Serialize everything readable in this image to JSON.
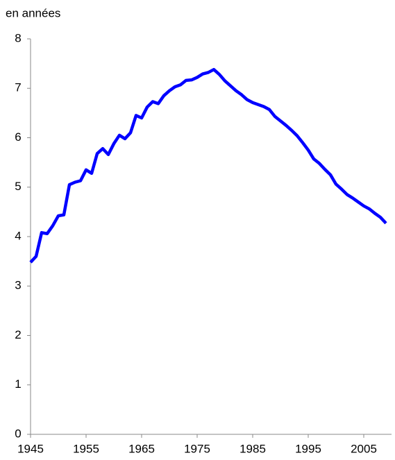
{
  "chart_data": {
    "type": "line",
    "y_axis_label": "en années",
    "x": [
      1945,
      1946,
      1947,
      1948,
      1949,
      1950,
      1951,
      1952,
      1953,
      1954,
      1955,
      1956,
      1957,
      1958,
      1959,
      1960,
      1961,
      1962,
      1963,
      1964,
      1965,
      1966,
      1967,
      1968,
      1969,
      1970,
      1971,
      1972,
      1973,
      1974,
      1975,
      1976,
      1977,
      1978,
      1979,
      1980,
      1981,
      1982,
      1983,
      1984,
      1985,
      1986,
      1987,
      1988,
      1989,
      1990,
      1991,
      1992,
      1993,
      1994,
      1995,
      1996,
      1997,
      1998,
      1999,
      2000,
      2001,
      2002,
      2003,
      2004,
      2005,
      2006,
      2007,
      2008,
      2009
    ],
    "series": [
      {
        "color": "#0000ff",
        "values": [
          3.48,
          3.6,
          4.08,
          4.06,
          4.22,
          4.42,
          4.44,
          5.05,
          5.1,
          5.13,
          5.35,
          5.28,
          5.68,
          5.78,
          5.66,
          5.88,
          6.05,
          5.98,
          6.1,
          6.45,
          6.4,
          6.62,
          6.73,
          6.69,
          6.85,
          6.95,
          7.03,
          7.07,
          7.16,
          7.17,
          7.22,
          7.29,
          7.32,
          7.38,
          7.28,
          7.15,
          7.05,
          6.95,
          6.87,
          6.77,
          6.71,
          6.67,
          6.63,
          6.57,
          6.43,
          6.34,
          6.25,
          6.15,
          6.04,
          5.9,
          5.75,
          5.57,
          5.48,
          5.36,
          5.25,
          5.06,
          4.96,
          4.85,
          4.78,
          4.7,
          4.62,
          4.56,
          4.47,
          4.39,
          4.27
        ]
      }
    ],
    "xlim": [
      1945,
      2010
    ],
    "xticks": [
      1945,
      1955,
      1965,
      1975,
      1985,
      1995,
      2005
    ],
    "ylim": [
      0,
      8
    ],
    "yticks": [
      0,
      1,
      2,
      3,
      4,
      5,
      6,
      7,
      8
    ],
    "grid": false
  }
}
